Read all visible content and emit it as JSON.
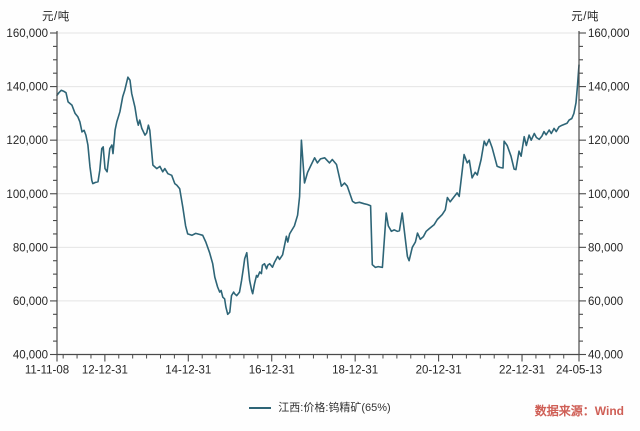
{
  "chart": {
    "unit_left": "元/吨",
    "unit_right": "元/吨",
    "legend_label": "江西:价格:钨精矿(65%)",
    "source": "数据来源：Wind"
  },
  "chart_data": {
    "type": "line",
    "title": "",
    "ylabel": "元/吨",
    "ylim": [
      40000,
      160000
    ],
    "y_tick_step": 20000,
    "y_minor_step": 5000,
    "y_tick_labels": [
      "40,000",
      "60,000",
      "80,000",
      "100,000",
      "120,000",
      "140,000",
      "160,000"
    ],
    "grid": "horizontal",
    "legend_position": "bottom-center",
    "x_unit": "months since 2011-11-08",
    "x_range": [
      0,
      150.16
    ],
    "x_minor_step_months": 4,
    "x_ticks": [
      {
        "pos": 0,
        "label": "11-11-08"
      },
      {
        "pos": 13.77,
        "label": "12-12-31"
      },
      {
        "pos": 37.77,
        "label": "14-12-31"
      },
      {
        "pos": 61.77,
        "label": "16-12-31"
      },
      {
        "pos": 85.77,
        "label": "18-12-31"
      },
      {
        "pos": 109.77,
        "label": "20-12-31"
      },
      {
        "pos": 133.77,
        "label": "22-12-31"
      },
      {
        "pos": 150.16,
        "label": "24-05-13"
      }
    ],
    "series": [
      {
        "name": "江西:价格:钨精矿(65%)",
        "color": "#2e6577",
        "points": [
          [
            0,
            136800
          ],
          [
            0.6,
            137800
          ],
          [
            1.2,
            138600
          ],
          [
            2,
            138200
          ],
          [
            2.6,
            137700
          ],
          [
            3.2,
            134300
          ],
          [
            4.3,
            133100
          ],
          [
            5.2,
            130000
          ],
          [
            6,
            128700
          ],
          [
            6.6,
            126800
          ],
          [
            7.2,
            123100
          ],
          [
            7.8,
            123700
          ],
          [
            8.3,
            121900
          ],
          [
            8.9,
            118200
          ],
          [
            9.5,
            110000
          ],
          [
            10,
            105000
          ],
          [
            10.3,
            103800
          ],
          [
            11,
            104200
          ],
          [
            11.8,
            104500
          ],
          [
            12.3,
            108800
          ],
          [
            12.9,
            116900
          ],
          [
            13.3,
            117500
          ],
          [
            13.8,
            109400
          ],
          [
            14.4,
            108200
          ],
          [
            15.2,
            116900
          ],
          [
            15.8,
            118200
          ],
          [
            16.1,
            115000
          ],
          [
            16.7,
            123800
          ],
          [
            17.2,
            126800
          ],
          [
            18.1,
            130600
          ],
          [
            18.9,
            136200
          ],
          [
            19.5,
            138700
          ],
          [
            20.4,
            143500
          ],
          [
            21,
            142400
          ],
          [
            21.5,
            137400
          ],
          [
            22.4,
            132400
          ],
          [
            23,
            127500
          ],
          [
            23.4,
            125600
          ],
          [
            23.8,
            127500
          ],
          [
            24.4,
            124400
          ],
          [
            25.3,
            121900
          ],
          [
            25.8,
            122700
          ],
          [
            26.3,
            125600
          ],
          [
            26.7,
            123700
          ],
          [
            27.6,
            110700
          ],
          [
            28.7,
            109400
          ],
          [
            29.6,
            110200
          ],
          [
            30.4,
            108200
          ],
          [
            31,
            109400
          ],
          [
            31.9,
            107500
          ],
          [
            33,
            106900
          ],
          [
            33.9,
            103800
          ],
          [
            34.5,
            103200
          ],
          [
            35.3,
            101900
          ],
          [
            36.2,
            95000
          ],
          [
            37,
            88000
          ],
          [
            37.6,
            85000
          ],
          [
            38.8,
            84500
          ],
          [
            39.9,
            85200
          ],
          [
            41.1,
            84800
          ],
          [
            41.9,
            84500
          ],
          [
            42.8,
            82000
          ],
          [
            43.9,
            78000
          ],
          [
            44.8,
            73900
          ],
          [
            45.4,
            68900
          ],
          [
            46.2,
            65200
          ],
          [
            46.8,
            63300
          ],
          [
            47.2,
            63900
          ],
          [
            47.7,
            61400
          ],
          [
            48.2,
            60800
          ],
          [
            48.6,
            57700
          ],
          [
            49.1,
            55000
          ],
          [
            49.7,
            55800
          ],
          [
            50.2,
            62000
          ],
          [
            50.8,
            63300
          ],
          [
            51.1,
            62700
          ],
          [
            51.7,
            62000
          ],
          [
            52.5,
            63300
          ],
          [
            53.1,
            67700
          ],
          [
            53.6,
            72000
          ],
          [
            54,
            75800
          ],
          [
            54.6,
            78000
          ],
          [
            55,
            72600
          ],
          [
            55.4,
            67700
          ],
          [
            56,
            63900
          ],
          [
            56.3,
            62700
          ],
          [
            56.8,
            66400
          ],
          [
            57.4,
            69500
          ],
          [
            57.7,
            68900
          ],
          [
            58.3,
            70800
          ],
          [
            58.8,
            70200
          ],
          [
            59.1,
            73300
          ],
          [
            59.7,
            73900
          ],
          [
            60.3,
            72000
          ],
          [
            60.6,
            73300
          ],
          [
            61.2,
            73900
          ],
          [
            62,
            72600
          ],
          [
            62.6,
            74500
          ],
          [
            63.5,
            76600
          ],
          [
            64,
            75500
          ],
          [
            64.9,
            77200
          ],
          [
            66,
            84100
          ],
          [
            66.4,
            82000
          ],
          [
            66.9,
            85000
          ],
          [
            68.3,
            88000
          ],
          [
            69.2,
            92000
          ],
          [
            69.8,
            99000
          ],
          [
            70.3,
            120000
          ],
          [
            71.2,
            104000
          ],
          [
            72.1,
            108000
          ],
          [
            73,
            110500
          ],
          [
            74.1,
            113400
          ],
          [
            74.9,
            111500
          ],
          [
            75.8,
            113000
          ],
          [
            77,
            113400
          ],
          [
            78.4,
            111500
          ],
          [
            79.2,
            112800
          ],
          [
            80.4,
            110900
          ],
          [
            81.8,
            102800
          ],
          [
            82.7,
            104000
          ],
          [
            83.5,
            102800
          ],
          [
            85,
            97200
          ],
          [
            85.8,
            96500
          ],
          [
            87,
            96800
          ],
          [
            88.3,
            96300
          ],
          [
            89.3,
            96000
          ],
          [
            90.2,
            95500
          ],
          [
            90.7,
            73500
          ],
          [
            91.6,
            72500
          ],
          [
            92.4,
            72800
          ],
          [
            93.6,
            72500
          ],
          [
            94.7,
            92800
          ],
          [
            95.3,
            88000
          ],
          [
            96.2,
            86000
          ],
          [
            97,
            86500
          ],
          [
            97.9,
            86000
          ],
          [
            98.5,
            86200
          ],
          [
            99.3,
            92800
          ],
          [
            100.8,
            76600
          ],
          [
            101.3,
            75000
          ],
          [
            102.2,
            80000
          ],
          [
            103.1,
            82000
          ],
          [
            103.7,
            85300
          ],
          [
            104.5,
            83000
          ],
          [
            105.4,
            84000
          ],
          [
            106.2,
            86000
          ],
          [
            107.1,
            87000
          ],
          [
            108.5,
            88500
          ],
          [
            109.4,
            90400
          ],
          [
            110.8,
            92200
          ],
          [
            111.7,
            94000
          ],
          [
            112.3,
            98600
          ],
          [
            113.1,
            97000
          ],
          [
            114,
            98500
          ],
          [
            115.1,
            100300
          ],
          [
            115.7,
            99000
          ],
          [
            117.1,
            114600
          ],
          [
            118,
            111500
          ],
          [
            118.6,
            112500
          ],
          [
            119.4,
            105900
          ],
          [
            120.3,
            108000
          ],
          [
            120.9,
            107000
          ],
          [
            122,
            112800
          ],
          [
            122.9,
            119600
          ],
          [
            123.5,
            118000
          ],
          [
            124.3,
            120300
          ],
          [
            125.2,
            117100
          ],
          [
            126.6,
            110300
          ],
          [
            127.5,
            109800
          ],
          [
            128.3,
            109600
          ],
          [
            128.6,
            119600
          ],
          [
            129.5,
            118000
          ],
          [
            130.6,
            114000
          ],
          [
            131.5,
            109200
          ],
          [
            132,
            109000
          ],
          [
            132.9,
            115900
          ],
          [
            133.5,
            114000
          ],
          [
            134.4,
            121300
          ],
          [
            135,
            118000
          ],
          [
            135.8,
            121900
          ],
          [
            136.4,
            120000
          ],
          [
            137.3,
            122500
          ],
          [
            137.9,
            121000
          ],
          [
            138.7,
            120300
          ],
          [
            139.5,
            121500
          ],
          [
            140.1,
            123200
          ],
          [
            140.7,
            122000
          ],
          [
            141.6,
            123800
          ],
          [
            142.2,
            122500
          ],
          [
            143,
            124400
          ],
          [
            143.6,
            123200
          ],
          [
            144.4,
            125000
          ],
          [
            145.3,
            125600
          ],
          [
            146.7,
            126300
          ],
          [
            147.3,
            127500
          ],
          [
            148.1,
            128100
          ],
          [
            148.7,
            130000
          ],
          [
            149.3,
            134000
          ],
          [
            149.7,
            140000
          ],
          [
            150.16,
            148000
          ]
        ]
      }
    ],
    "colors": {
      "line": "#2e6577",
      "grid": "#e4e4e4",
      "axis": "#4a4a4a",
      "tick_text": "#262626",
      "source_text": "#cf5f56"
    }
  }
}
